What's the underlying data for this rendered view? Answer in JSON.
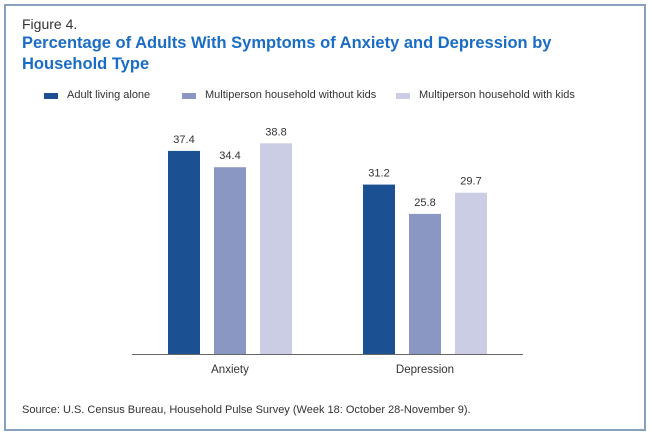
{
  "figure_label": "Figure 4.",
  "colors": {
    "series_1": "#1b5193",
    "series_2": "#8b97c3",
    "series_3": "#cacde3",
    "title": "#1a6dc4"
  },
  "chart_data": {
    "type": "bar",
    "title": "Percentage of Adults With Symptoms of Anxiety and Depression by Household Type",
    "xlabel": "",
    "ylabel": "",
    "categories": [
      "Anxiety",
      "Depression"
    ],
    "series": [
      {
        "name": "Adult living alone",
        "values": [
          37.4,
          31.2
        ],
        "labels": [
          "37.4",
          "31.2"
        ]
      },
      {
        "name": "Multiperson household without kids",
        "values": [
          34.4,
          25.8
        ],
        "labels": [
          "34.4",
          "25.8"
        ]
      },
      {
        "name": "Multiperson household with kids",
        "values": [
          38.8,
          29.7
        ],
        "labels": [
          "38.8",
          "29.7"
        ]
      }
    ],
    "ylim": [
      0,
      40
    ],
    "grid": false,
    "legend": "top"
  },
  "source": "Source: U.S. Census Bureau, Household Pulse Survey (Week 18: October 28-November 9)."
}
